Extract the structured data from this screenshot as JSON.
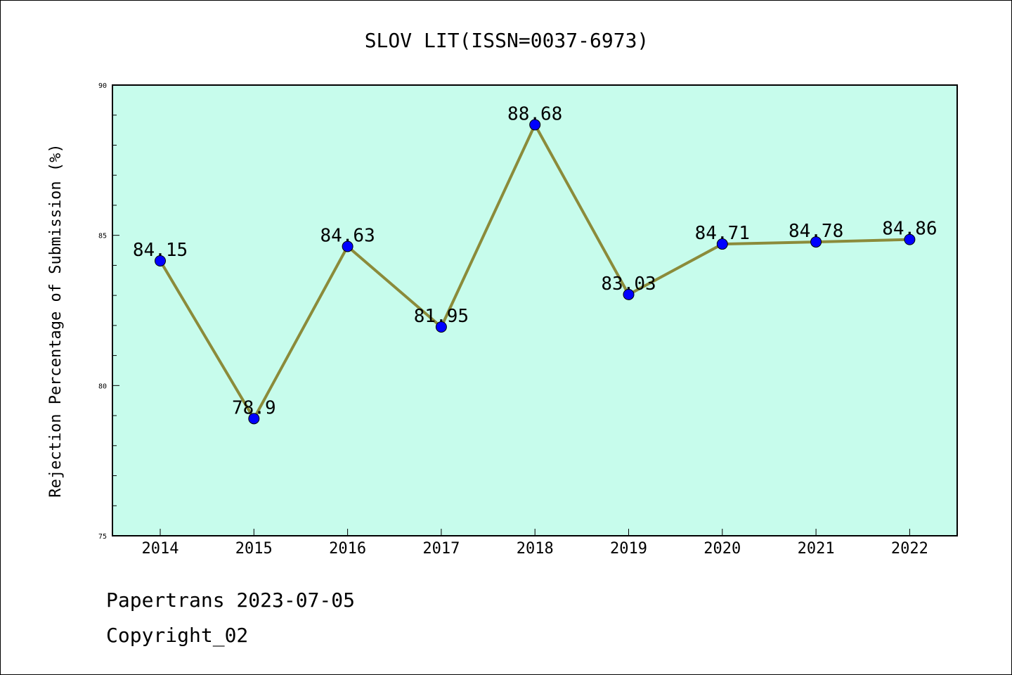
{
  "chart_data": {
    "type": "line",
    "title": "SLOV LIT(ISSN=0037-6973)",
    "xlabel": "",
    "ylabel": "Rejection Percentage of Submission (%)",
    "categories": [
      "2014",
      "2015",
      "2016",
      "2017",
      "2018",
      "2019",
      "2020",
      "2021",
      "2022"
    ],
    "values": [
      84.15,
      78.9,
      84.63,
      81.95,
      88.68,
      83.03,
      84.71,
      84.78,
      84.86
    ],
    "data_labels": [
      "84.15",
      "78.9",
      "84.63",
      "81.95",
      "88.68",
      "83.03",
      "84.71",
      "84.78",
      "84.86"
    ],
    "ylim": [
      75,
      90
    ],
    "yticks": [
      75,
      80,
      85,
      90
    ],
    "ytick_labels": [
      "75",
      "80",
      "85",
      "90"
    ],
    "grid": false,
    "colors": {
      "plot_background": "#c7fcec",
      "line": "#8b8b3a",
      "marker": "#0000ff"
    }
  },
  "footer": {
    "line1": "Papertrans 2023-07-05",
    "line2": "Copyright_02"
  }
}
